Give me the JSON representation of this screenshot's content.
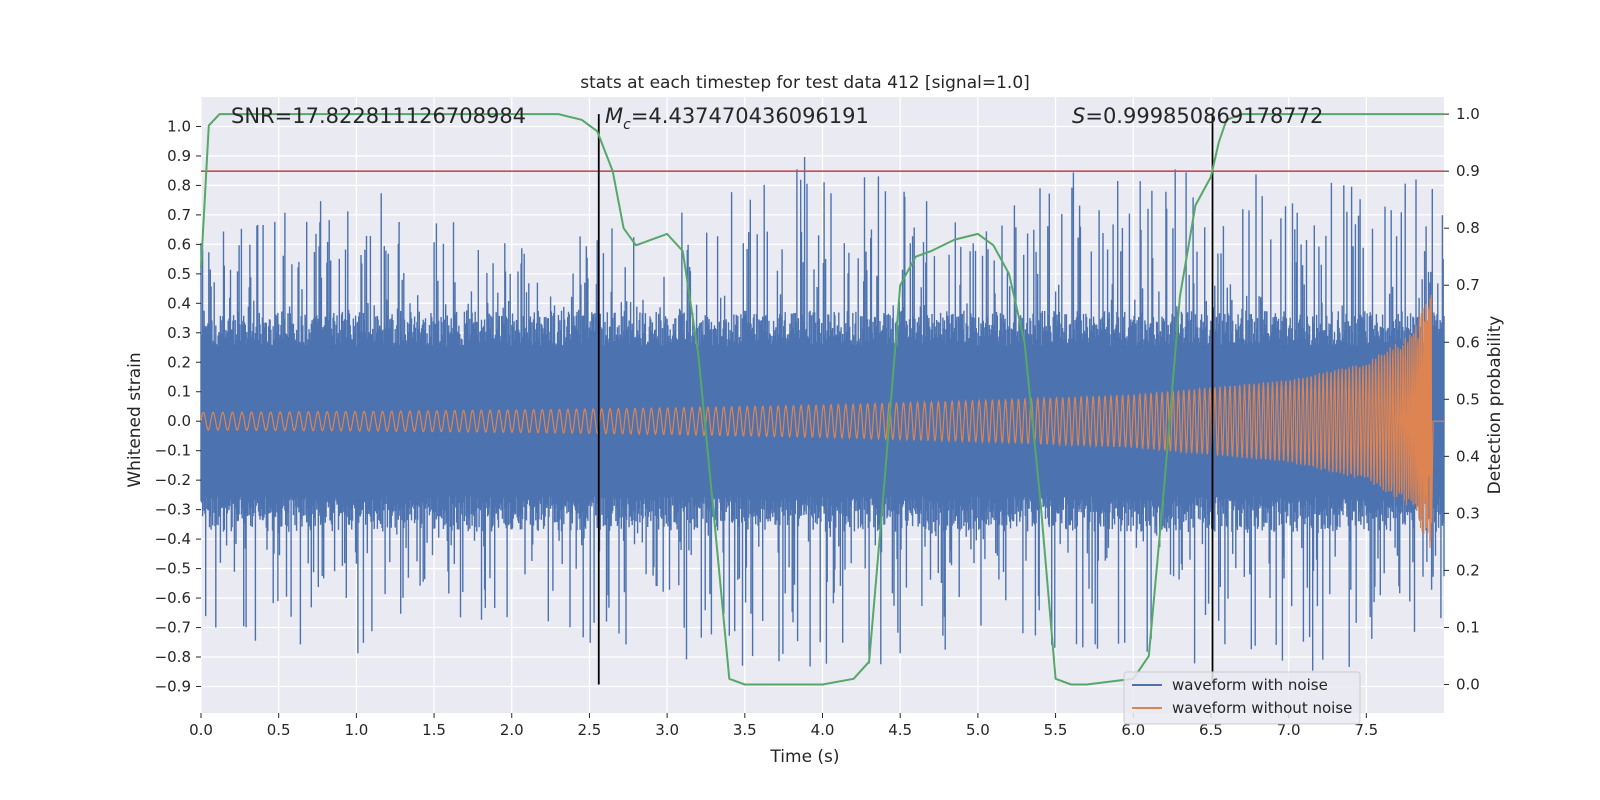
{
  "chart_data": {
    "type": "line",
    "title": "stats at each timestep for test data 412 [signal=1.0]",
    "xlabel": "Time (s)",
    "ylabel": "Whitened strain",
    "y2label": "Detection probability",
    "xlim": [
      0.0,
      8.0
    ],
    "ylim": [
      -0.99,
      1.1
    ],
    "y2lim": [
      -0.05,
      1.03
    ],
    "xticks": [
      "0.0",
      "0.5",
      "1.0",
      "1.5",
      "2.0",
      "2.5",
      "3.0",
      "3.5",
      "4.0",
      "4.5",
      "5.0",
      "5.5",
      "6.0",
      "6.5",
      "7.0",
      "7.5"
    ],
    "yticks": [
      "1.0",
      "0.9",
      "0.8",
      "0.7",
      "0.6",
      "0.5",
      "0.4",
      "0.3",
      "0.2",
      "0.1",
      "0.0",
      "-0.1",
      "-0.2",
      "-0.3",
      "-0.4",
      "-0.5",
      "-0.6",
      "-0.7",
      "-0.8",
      "-0.9"
    ],
    "y2ticks": [
      "1.0",
      "0.9",
      "0.8",
      "0.7",
      "0.6",
      "0.5",
      "0.4",
      "0.3",
      "0.2",
      "0.1",
      "0.0"
    ],
    "annotations": {
      "snr": "SNR=17.822811126708984",
      "mc_symbol": "M",
      "mc_sub": "c",
      "mc_value": "=4.437470436096191",
      "s_symbol": "S",
      "s_value": "=0.999850869178772"
    },
    "legend": {
      "placement": "lower-right",
      "entries": [
        "waveform with noise",
        "waveform without noise"
      ]
    },
    "grid": true,
    "colors": {
      "noise": "#4c72b0",
      "clean": "#dd8452",
      "probability": "#55a868",
      "threshold": "#c44e52",
      "marker": "#000000",
      "background": "#eaeaf2"
    },
    "threshold": 0.9,
    "vertical_markers": [
      2.56,
      6.51
    ],
    "series": [
      {
        "name": "waveform with noise",
        "envelope": {
          "t": [
            0.0,
            1.0,
            2.0,
            3.0,
            4.0,
            5.0,
            6.0,
            7.0,
            7.9
          ],
          "spikes_up": [
            0.65,
            0.82,
            0.62,
            0.7,
            0.94,
            0.66,
            1.0,
            0.82,
            0.83
          ],
          "spikes_down": [
            -0.72,
            -0.82,
            -0.68,
            -0.84,
            -0.85,
            -0.79,
            -0.84,
            -0.85,
            -0.83
          ],
          "band": [
            0.3,
            0.3,
            0.3,
            0.3,
            0.3,
            0.3,
            0.3,
            0.3,
            0.3
          ]
        }
      },
      {
        "name": "waveform without noise",
        "envelope": {
          "t": [
            0.0,
            1.0,
            2.0,
            3.0,
            4.0,
            5.0,
            6.0,
            7.0,
            7.5,
            7.8,
            7.9
          ],
          "amplitude": [
            0.03,
            0.033,
            0.038,
            0.045,
            0.055,
            0.07,
            0.09,
            0.14,
            0.2,
            0.3,
            0.43
          ]
        }
      },
      {
        "name": "detection probability",
        "t": [
          0.0,
          0.05,
          0.12,
          0.2,
          2.3,
          2.45,
          2.55,
          2.65,
          2.72,
          2.8,
          2.9,
          3.0,
          3.1,
          3.2,
          3.3,
          3.4,
          3.5,
          4.0,
          4.2,
          4.3,
          4.4,
          4.5,
          4.6,
          4.7,
          4.85,
          5.0,
          5.1,
          5.2,
          5.3,
          5.4,
          5.5,
          5.6,
          5.7,
          6.0,
          6.1,
          6.2,
          6.3,
          6.4,
          6.5,
          6.55,
          6.6,
          6.7,
          7.0,
          7.5,
          8.0
        ],
        "values": [
          0.73,
          0.98,
          1.0,
          1.0,
          1.0,
          0.99,
          0.97,
          0.9,
          0.8,
          0.77,
          0.78,
          0.79,
          0.76,
          0.58,
          0.3,
          0.01,
          0.0,
          0.0,
          0.01,
          0.04,
          0.36,
          0.7,
          0.75,
          0.76,
          0.78,
          0.79,
          0.77,
          0.72,
          0.6,
          0.33,
          0.01,
          0.0,
          0.0,
          0.01,
          0.05,
          0.35,
          0.68,
          0.84,
          0.89,
          0.95,
          0.99,
          1.0,
          1.0,
          1.0,
          1.0
        ]
      }
    ]
  }
}
